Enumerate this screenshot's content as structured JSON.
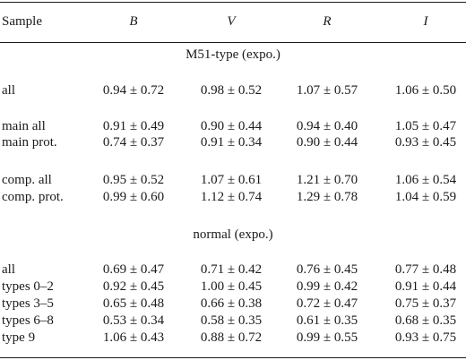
{
  "header": {
    "sample": "Sample",
    "b": "B",
    "v": "V",
    "r": "R",
    "i": "I"
  },
  "sections": [
    {
      "title": "M51-type (expo.)",
      "rows": [
        {
          "label": "all",
          "b": "0.94 ± 0.72",
          "v": "0.98 ± 0.52",
          "r": "1.07 ± 0.57",
          "i": "1.06 ± 0.50"
        },
        {
          "label": "main all",
          "b": "0.91 ± 0.49",
          "v": "0.90 ± 0.44",
          "r": "0.94 ± 0.40",
          "i": "1.05 ± 0.47"
        },
        {
          "label": "main prot.",
          "b": "0.74 ± 0.37",
          "v": "0.91 ± 0.34",
          "r": "0.90 ± 0.44",
          "i": "0.93 ± 0.45"
        },
        {
          "label": "comp. all",
          "b": "0.95 ± 0.52",
          "v": "1.07 ± 0.61",
          "r": "1.21 ± 0.70",
          "i": "1.06 ± 0.54"
        },
        {
          "label": "comp. prot.",
          "b": "0.99 ± 0.60",
          "v": "1.12 ± 0.74",
          "r": "1.29 ± 0.78",
          "i": "1.04 ± 0.59"
        }
      ]
    },
    {
      "title": "normal (expo.)",
      "rows": [
        {
          "label": "all",
          "b": "0.69 ± 0.47",
          "v": "0.71 ± 0.42",
          "r": "0.76 ± 0.45",
          "i": "0.77 ± 0.48"
        },
        {
          "label": "types 0–2",
          "b": "0.92 ± 0.45",
          "v": "1.00 ± 0.45",
          "r": "0.99 ± 0.42",
          "i": "0.91 ± 0.44"
        },
        {
          "label": "types 3–5",
          "b": "0.65 ± 0.48",
          "v": "0.66 ± 0.38",
          "r": "0.72 ± 0.47",
          "i": "0.75 ± 0.37"
        },
        {
          "label": "types 6–8",
          "b": "0.53 ± 0.34",
          "v": "0.58 ± 0.35",
          "r": "0.61 ± 0.35",
          "i": "0.68 ± 0.35"
        },
        {
          "label": "type 9",
          "b": "1.06 ± 0.43",
          "v": "0.88 ± 0.72",
          "r": "0.99 ± 0.55",
          "i": "0.93 ± 0.75"
        }
      ]
    }
  ]
}
